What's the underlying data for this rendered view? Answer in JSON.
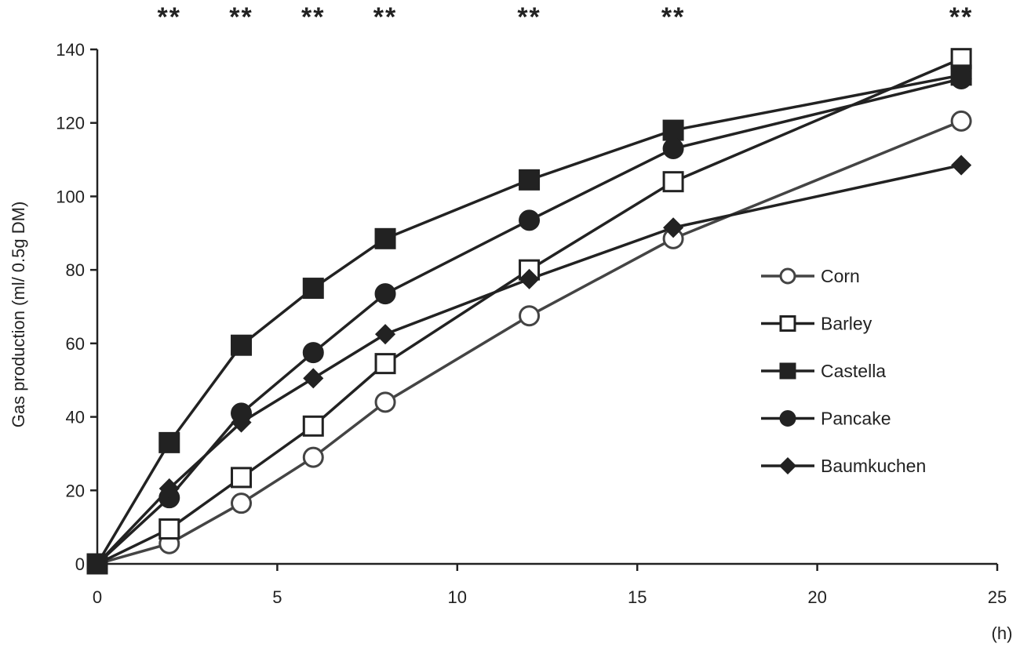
{
  "chart_data": {
    "type": "line",
    "title": "",
    "xlabel": "(h)",
    "ylabel": "Gas production (ml/ 0.5g DM)",
    "xlim": [
      0,
      25
    ],
    "ylim": [
      0,
      140
    ],
    "xticks": [
      0,
      5,
      10,
      15,
      20,
      25
    ],
    "yticks": [
      0,
      20,
      40,
      60,
      80,
      100,
      120,
      140
    ],
    "grid": false,
    "legend_position": "right",
    "significance": [
      {
        "x": 2,
        "label": "**"
      },
      {
        "x": 4,
        "label": "**"
      },
      {
        "x": 6,
        "label": "**"
      },
      {
        "x": 8,
        "label": "**"
      },
      {
        "x": 12,
        "label": "**"
      },
      {
        "x": 16,
        "label": "**"
      },
      {
        "x": 24,
        "label": "**"
      }
    ],
    "x": [
      0,
      2,
      4,
      6,
      8,
      12,
      16,
      24
    ],
    "series": [
      {
        "name": "Corn",
        "marker": "circle-open",
        "color": "#444444",
        "values": [
          0,
          5.5,
          16.5,
          29,
          44,
          67.5,
          88.5,
          120.5
        ]
      },
      {
        "name": "Barley",
        "marker": "square-open",
        "color": "#222222",
        "values": [
          0,
          9.5,
          23.5,
          37.5,
          54.5,
          80,
          104,
          137.5
        ]
      },
      {
        "name": "Castella",
        "marker": "square-filled",
        "color": "#222222",
        "values": [
          0,
          33,
          59.5,
          75,
          88.5,
          104.5,
          118,
          133
        ]
      },
      {
        "name": "Pancake",
        "marker": "circle-filled",
        "color": "#222222",
        "values": [
          0,
          18,
          41,
          57.5,
          73.5,
          93.5,
          113,
          132
        ]
      },
      {
        "name": "Baumkuchen",
        "marker": "diamond-filled",
        "color": "#222222",
        "values": [
          0,
          20.5,
          38.5,
          50.5,
          62.5,
          77.5,
          91.5,
          108.5
        ]
      }
    ]
  }
}
